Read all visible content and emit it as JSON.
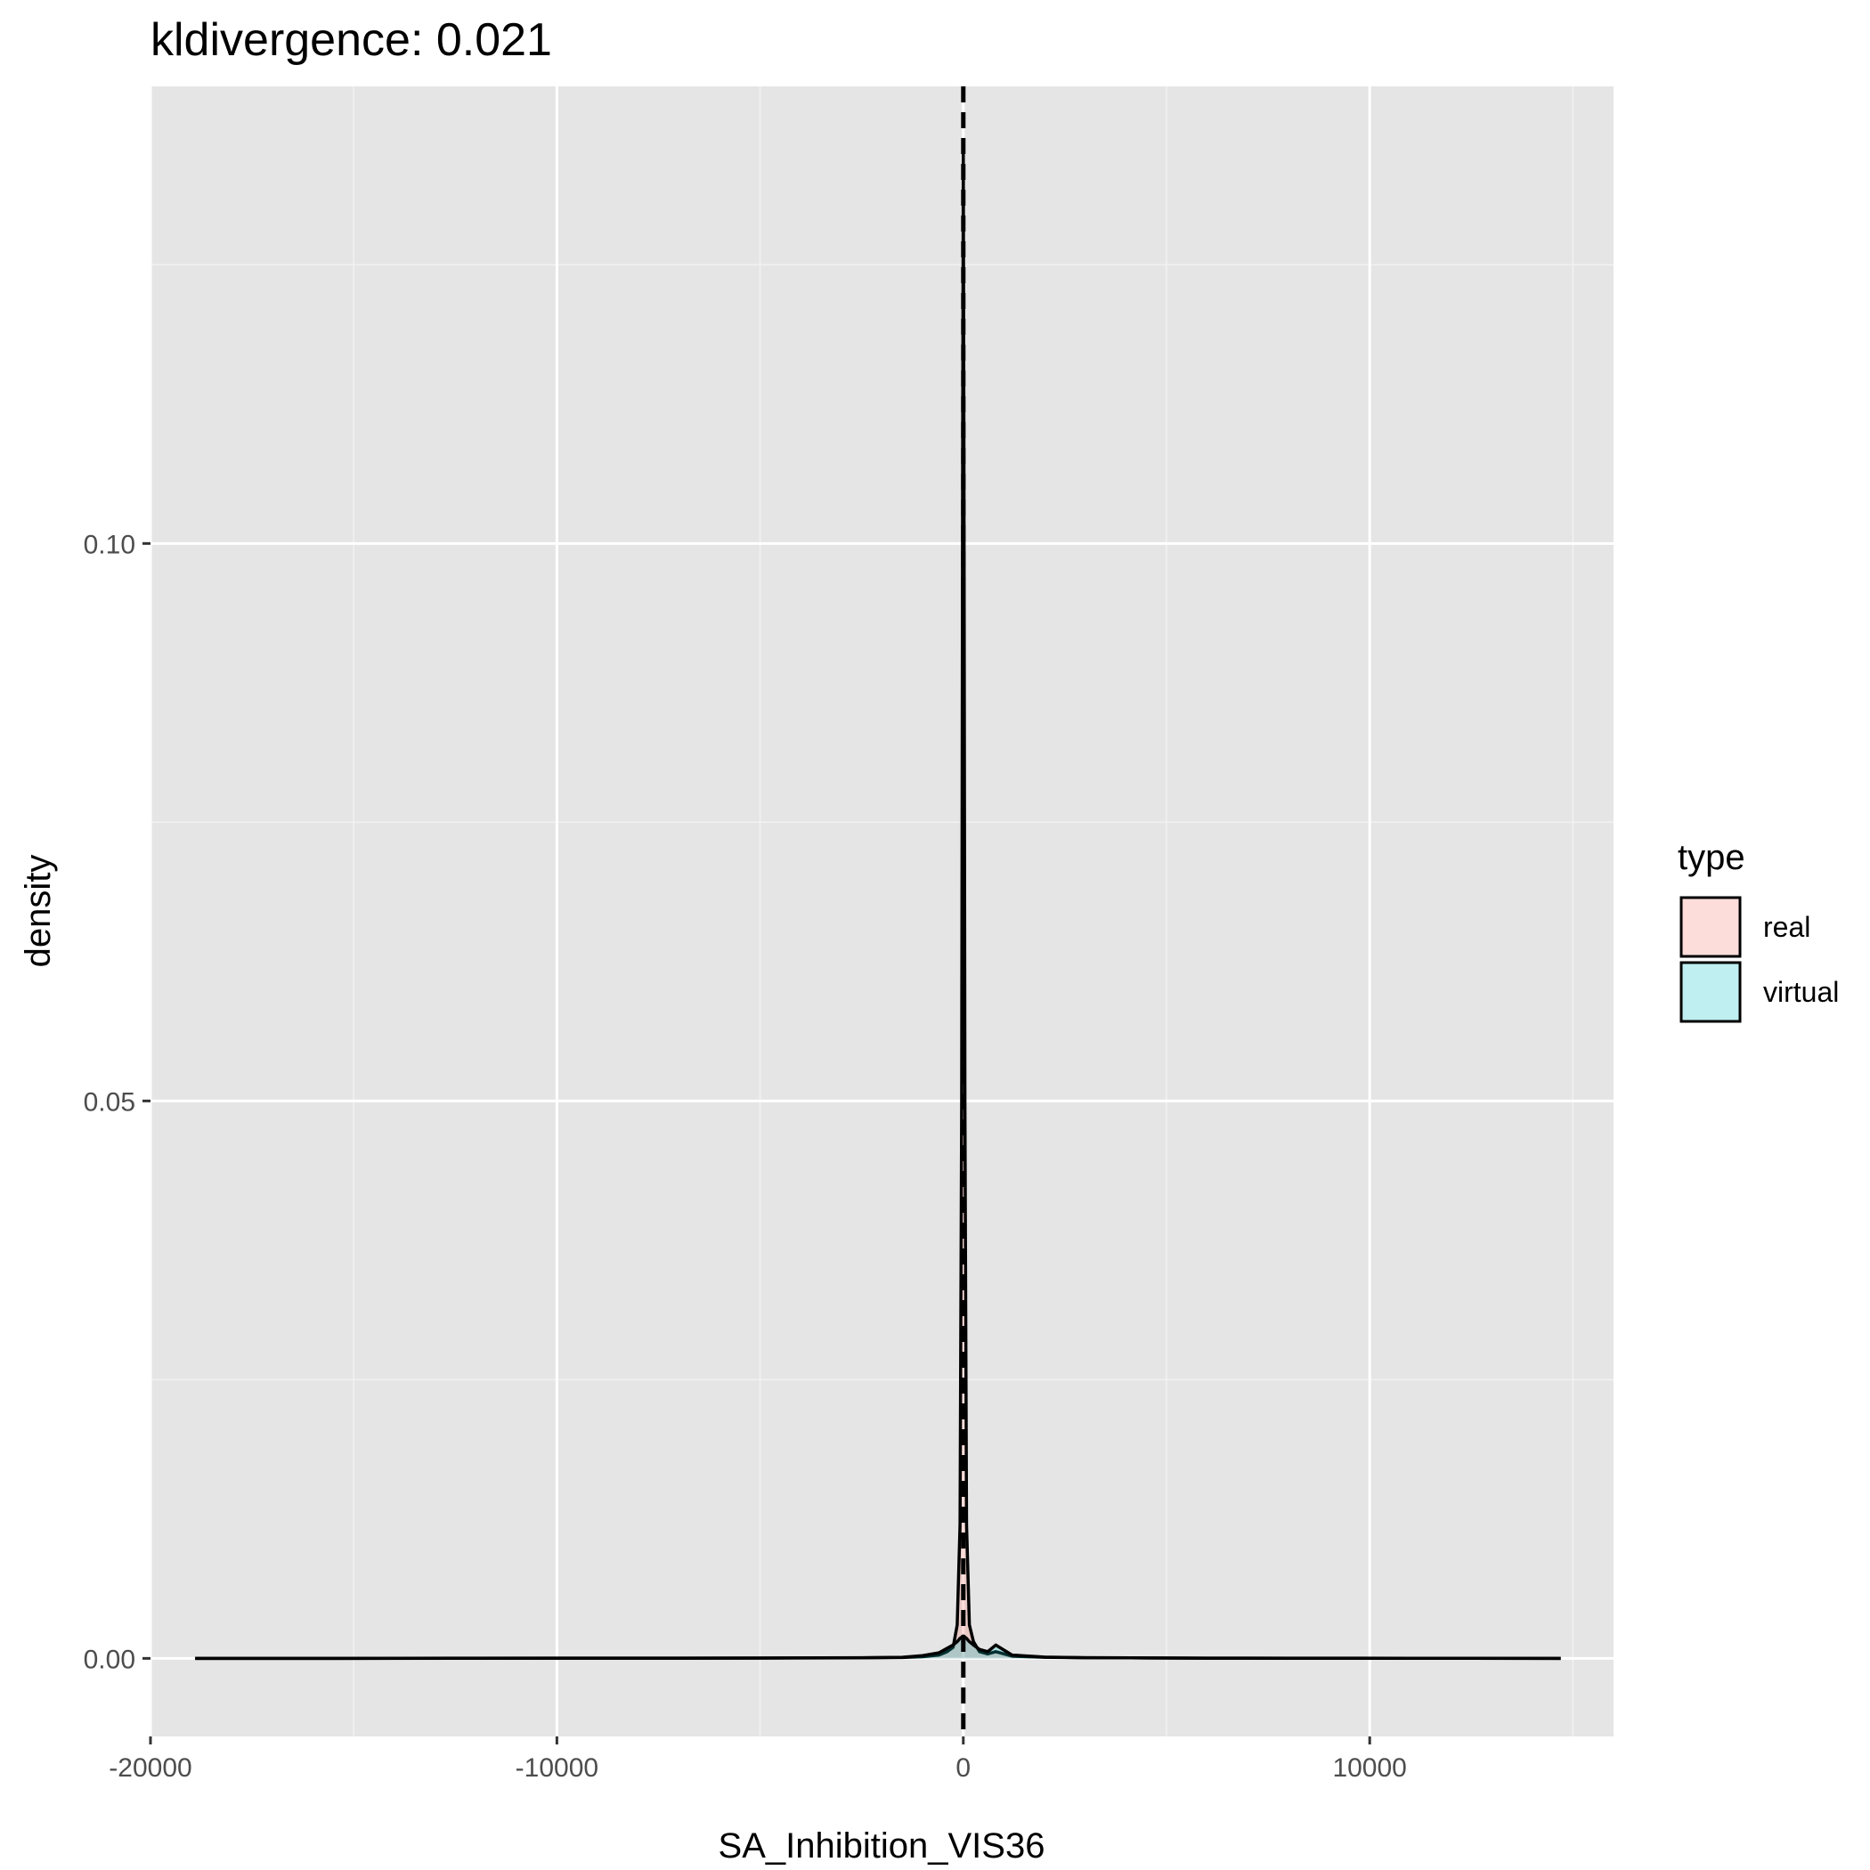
{
  "chart_data": {
    "type": "area",
    "title": "kldivergence: 0.021",
    "xlabel": "SA_Inhibition_VIS36",
    "ylabel": "density",
    "xlim": [
      -20000,
      16000
    ],
    "ylim": [
      -0.007,
      0.141
    ],
    "x_ticks": [
      -20000,
      -10000,
      0,
      10000
    ],
    "x_tick_labels": [
      "-20000",
      "-10000",
      "0",
      "10000"
    ],
    "y_ticks": [
      0.0,
      0.05,
      0.1
    ],
    "y_tick_labels": [
      "0.00",
      "0.05",
      "0.10"
    ],
    "grid": true,
    "reference_line": {
      "x": 0,
      "style": "dashed",
      "color": "#000000"
    },
    "legend": {
      "title": "type",
      "position": "right",
      "entries": [
        {
          "label": "real",
          "color": "#F8766D"
        },
        {
          "label": "virtual",
          "color": "#00BFC4"
        }
      ]
    },
    "series": [
      {
        "name": "real",
        "color": "#F8766D",
        "x": [
          -18900,
          -16000,
          -12000,
          -8000,
          -5000,
          -3500,
          -2500,
          -1500,
          -1000,
          -600,
          -400,
          -250,
          -150,
          -80,
          -40,
          -15,
          0,
          15,
          40,
          80,
          150,
          250,
          400,
          600,
          800,
          1200,
          2000,
          3000,
          4500,
          6000,
          8000,
          11000,
          14700
        ],
        "y": [
          0,
          0,
          2e-05,
          2e-05,
          3e-05,
          4e-05,
          5e-05,
          8e-05,
          0.00015,
          0.0003,
          0.0006,
          0.001,
          0.003,
          0.012,
          0.05,
          0.11,
          0.135,
          0.11,
          0.05,
          0.012,
          0.003,
          0.0015,
          0.0006,
          0.0004,
          0.0006,
          0.0002,
          0.0001,
          6e-05,
          4e-05,
          2e-05,
          2e-05,
          1e-05,
          0
        ]
      },
      {
        "name": "virtual",
        "color": "#00BFC4",
        "x": [
          -18900,
          -16000,
          -12000,
          -8000,
          -5000,
          -3500,
          -2500,
          -1500,
          -1000,
          -600,
          -400,
          -250,
          -150,
          -80,
          -40,
          -15,
          0,
          15,
          40,
          80,
          150,
          250,
          400,
          600,
          800,
          1200,
          2000,
          3000,
          4500,
          6000,
          8000,
          11000,
          14700
        ],
        "y": [
          0,
          0,
          1e-05,
          2e-05,
          3e-05,
          5e-05,
          6e-05,
          0.0001,
          0.00025,
          0.0005,
          0.0009,
          0.0012,
          0.0015,
          0.0018,
          0.0019,
          0.002,
          0.002,
          0.002,
          0.0019,
          0.0018,
          0.0015,
          0.0012,
          0.0008,
          0.0006,
          0.0012,
          0.0003,
          0.00012,
          6e-05,
          4e-05,
          2e-05,
          1e-05,
          1e-05,
          0
        ]
      }
    ]
  }
}
